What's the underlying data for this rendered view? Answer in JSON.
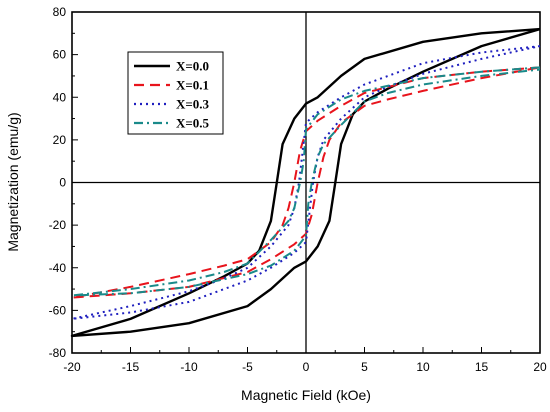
{
  "chart_data": {
    "type": "line",
    "title": "",
    "xlabel": "Magnetic Field (kOe)",
    "ylabel": "Magnetization (emu/g)",
    "xlim": [
      -20,
      20
    ],
    "ylim": [
      -80,
      80
    ],
    "xticks": [
      -20,
      -15,
      -10,
      -5,
      0,
      5,
      10,
      15,
      20
    ],
    "yticks": [
      -80,
      -60,
      -40,
      -20,
      0,
      20,
      40,
      60,
      80
    ],
    "grid": false,
    "legend_position": "top-left",
    "series": [
      {
        "name": "X=0.0",
        "color": "#000000",
        "dash": "solid",
        "x_descending": [
          20,
          15,
          10,
          5,
          3,
          1,
          0,
          -1,
          -2,
          -2.5,
          -3,
          -4,
          -5,
          -7,
          -10,
          -15,
          -20
        ],
        "y_descending": [
          72,
          70,
          66,
          58,
          50,
          40,
          37,
          30,
          18,
          0,
          -18,
          -32,
          -38,
          -44,
          -52,
          -64,
          -72
        ]
      },
      {
        "name": "X=0.1",
        "color": "#e8141c",
        "dash": "long-dash",
        "x_descending": [
          20,
          15,
          10,
          5,
          3,
          1,
          0,
          -0.5,
          -1,
          -1.5,
          -2,
          -3,
          -5,
          -7,
          -10,
          -15,
          -20
        ],
        "y_descending": [
          54,
          52,
          49,
          42,
          36,
          29,
          24,
          15,
          0,
          -12,
          -20,
          -28,
          -36,
          -39,
          -43,
          -49,
          -54
        ]
      },
      {
        "name": "X=0.3",
        "color": "#1f1fbf",
        "dash": "dotted",
        "x_descending": [
          20,
          15,
          10,
          5,
          3,
          1,
          0,
          -0.3,
          -0.6,
          -1,
          -1.5,
          -3,
          -5,
          -7,
          -10,
          -15,
          -20
        ],
        "y_descending": [
          64,
          61,
          56,
          46,
          40,
          33,
          28,
          14,
          0,
          -12,
          -20,
          -30,
          -40,
          -45,
          -51,
          -58,
          -64
        ]
      },
      {
        "name": "X=0.5",
        "color": "#1a8a8a",
        "dash": "dash-dot",
        "x_descending": [
          20,
          15,
          10,
          5,
          3,
          1,
          0,
          -0.2,
          -0.5,
          -1,
          -1.5,
          -3,
          -5,
          -7,
          -10,
          -15,
          -20
        ],
        "y_descending": [
          54,
          52,
          49,
          43,
          39,
          32,
          25,
          10,
          0,
          -12,
          -18,
          -27,
          -38,
          -42,
          -46,
          -50,
          -53
        ]
      }
    ]
  }
}
